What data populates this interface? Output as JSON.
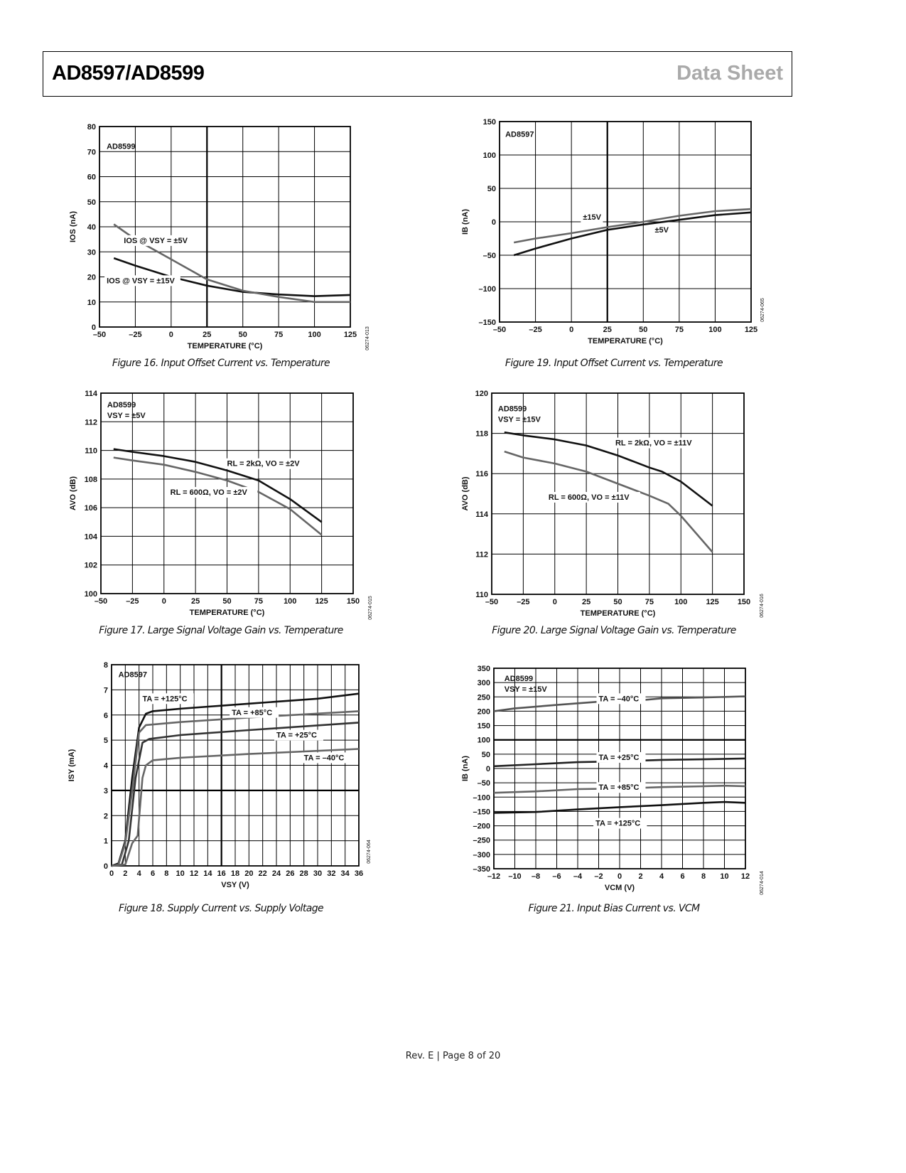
{
  "header": {
    "title": "AD8597/AD8599",
    "section": "Data Sheet"
  },
  "footer": {
    "text": "Rev. E | Page 8 of 20"
  },
  "colors": {
    "black_series": "#111111",
    "gray_series": "#666666",
    "section_label": "#aaaaaa"
  },
  "chart_data": [
    {
      "id": "fig16",
      "type": "line",
      "caption": "Figure 16. Input Offset Current vs. Temperature",
      "inset": [
        "AD8599"
      ],
      "xlabel": "TEMPERATURE (°C)",
      "ylabel": "IOS (nA)",
      "xlim": [
        -50,
        125
      ],
      "ylim": [
        0,
        80
      ],
      "xticks": [
        -50,
        -25,
        0,
        25,
        50,
        75,
        100,
        125
      ],
      "xtick_labels": [
        "–50",
        "–25",
        "0",
        "25",
        "50",
        "75",
        "100",
        "125"
      ],
      "yticks": [
        0,
        10,
        20,
        30,
        40,
        50,
        60,
        70,
        80
      ],
      "ytick_labels": [
        "0",
        "10",
        "20",
        "30",
        "40",
        "50",
        "60",
        "70",
        "80"
      ],
      "grid": true,
      "code": "06274-013",
      "series": [
        {
          "name": "IOS @ VSY = ±15V",
          "color": "#111111",
          "x": [
            -40,
            -25,
            0,
            25,
            50,
            75,
            100,
            125
          ],
          "y": [
            27.5,
            24.5,
            20,
            16.5,
            14,
            13,
            12.3,
            12.8
          ]
        },
        {
          "name": "IOS @ VSY = ±5V",
          "color": "#666666",
          "x": [
            -40,
            -25,
            0,
            25,
            50,
            75,
            100,
            125
          ],
          "y": [
            41,
            35,
            27,
            19,
            14.5,
            12,
            10,
            10
          ]
        }
      ]
    },
    {
      "id": "fig19",
      "type": "line",
      "caption": "Figure 19. Input Offset Current vs. Temperature",
      "inset": [
        "AD8597"
      ],
      "xlabel": "TEMPERATURE (°C)",
      "ylabel": "IB (nA)",
      "xlim": [
        -50,
        125
      ],
      "ylim": [
        -150,
        150
      ],
      "xticks": [
        -50,
        -25,
        0,
        25,
        50,
        75,
        100,
        125
      ],
      "xtick_labels": [
        "–50",
        "–25",
        "0",
        "25",
        "50",
        "75",
        "100",
        "125"
      ],
      "yticks": [
        -150,
        -100,
        -50,
        0,
        50,
        100,
        150
      ],
      "ytick_labels": [
        "–150",
        "–100",
        "–50",
        "0",
        "50",
        "100",
        "150"
      ],
      "grid": true,
      "code": "06274-065",
      "series": [
        {
          "name": "±15V",
          "color": "#111111",
          "x": [
            -40,
            -25,
            0,
            25,
            50,
            75,
            100,
            125
          ],
          "y": [
            -50,
            -40,
            -25,
            -12,
            -4,
            3,
            10,
            14
          ]
        },
        {
          "name": "±5V",
          "color": "#666666",
          "x": [
            -40,
            -25,
            0,
            25,
            50,
            75,
            100,
            125
          ],
          "y": [
            -31,
            -25,
            -17,
            -8,
            0,
            9,
            16,
            19
          ]
        }
      ]
    },
    {
      "id": "fig17",
      "type": "line",
      "caption": "Figure 17. Large Signal Voltage Gain vs. Temperature",
      "inset": [
        "AD8599",
        "VSY = ±5V"
      ],
      "xlabel": "TEMPERATURE (°C)",
      "ylabel": "AVO (dB)",
      "xlim": [
        -50,
        150
      ],
      "ylim": [
        100,
        114
      ],
      "xticks": [
        -50,
        -25,
        0,
        25,
        50,
        75,
        100,
        125,
        150
      ],
      "xtick_labels": [
        "–50",
        "–25",
        "0",
        "25",
        "50",
        "75",
        "100",
        "125",
        "150"
      ],
      "yticks": [
        100,
        102,
        104,
        106,
        108,
        110,
        112,
        114
      ],
      "ytick_labels": [
        "100",
        "102",
        "104",
        "106",
        "108",
        "110",
        "112",
        "114"
      ],
      "grid": true,
      "code": "06274-015",
      "series": [
        {
          "name": "RL = 2kΩ, VO = ±2V",
          "color": "#111111",
          "x": [
            -40,
            -25,
            0,
            25,
            50,
            75,
            100,
            125
          ],
          "y": [
            110.1,
            109.9,
            109.6,
            109.2,
            108.6,
            107.9,
            106.6,
            105.0
          ]
        },
        {
          "name": "RL = 600Ω, VO = ±2V",
          "color": "#666666",
          "x": [
            -40,
            -25,
            0,
            25,
            50,
            75,
            100,
            125
          ],
          "y": [
            109.5,
            109.3,
            109.0,
            108.5,
            107.9,
            107.1,
            105.9,
            104.1
          ]
        }
      ]
    },
    {
      "id": "fig20",
      "type": "line",
      "caption": "Figure 20. Large Signal Voltage Gain vs. Temperature",
      "inset": [
        "AD8599",
        "VSY = ±15V"
      ],
      "xlabel": "TEMPERATURE (°C)",
      "ylabel": "AVO (dB)",
      "xlim": [
        -50,
        150
      ],
      "ylim": [
        110,
        120
      ],
      "xticks": [
        -50,
        -25,
        0,
        25,
        50,
        75,
        100,
        125,
        150
      ],
      "xtick_labels": [
        "–50",
        "–25",
        "0",
        "25",
        "50",
        "75",
        "100",
        "125",
        "150"
      ],
      "yticks": [
        110,
        112,
        114,
        116,
        118,
        120
      ],
      "ytick_labels": [
        "110",
        "112",
        "114",
        "116",
        "118",
        "120"
      ],
      "grid": true,
      "code": "06274-016",
      "series": [
        {
          "name": "RL = 2kΩ, VO = ±11V",
          "color": "#111111",
          "x": [
            -40,
            -25,
            0,
            25,
            50,
            75,
            85,
            100,
            125
          ],
          "y": [
            118.05,
            117.9,
            117.7,
            117.4,
            116.9,
            116.3,
            116.1,
            115.6,
            114.4
          ]
        },
        {
          "name": "RL = 600Ω, VO = ±11V",
          "color": "#666666",
          "x": [
            -40,
            -25,
            0,
            25,
            50,
            75,
            90,
            100,
            125
          ],
          "y": [
            117.1,
            116.8,
            116.5,
            116.1,
            115.5,
            114.9,
            114.5,
            113.9,
            112.1
          ]
        }
      ]
    },
    {
      "id": "fig18",
      "type": "line",
      "caption": "Figure 18. Supply Current vs. Supply Voltage",
      "inset": [
        "AD8597"
      ],
      "xlabel": "VSY (V)",
      "ylabel": "ISY (mA)",
      "xlim": [
        0,
        36
      ],
      "ylim": [
        0,
        8
      ],
      "xticks": [
        0,
        2,
        4,
        6,
        8,
        10,
        12,
        14,
        16,
        18,
        20,
        22,
        24,
        26,
        28,
        30,
        32,
        34,
        36
      ],
      "xtick_labels": [
        "0",
        "2",
        "4",
        "6",
        "8",
        "10",
        "12",
        "14",
        "16",
        "18",
        "20",
        "22",
        "24",
        "26",
        "28",
        "30",
        "32",
        "34",
        "36"
      ],
      "yticks": [
        0,
        1,
        2,
        3,
        4,
        5,
        6,
        7,
        8
      ],
      "ytick_labels": [
        "0",
        "1",
        "2",
        "3",
        "4",
        "5",
        "6",
        "7",
        "8"
      ],
      "grid": true,
      "code": "06274-064",
      "series": [
        {
          "name": "TA = +125°C",
          "color": "#111111",
          "x": [
            0,
            1,
            2,
            3,
            4,
            5,
            6,
            10,
            20,
            30,
            36
          ],
          "y": [
            0,
            0.1,
            1,
            3.5,
            5.5,
            6.05,
            6.15,
            6.25,
            6.45,
            6.65,
            6.85
          ]
        },
        {
          "name": "TA = +85°C",
          "color": "#666666",
          "x": [
            0,
            1,
            2,
            3,
            4,
            5,
            10,
            20,
            36
          ],
          "y": [
            0,
            0.05,
            0.9,
            3,
            5.3,
            5.6,
            5.72,
            5.9,
            6.15
          ]
        },
        {
          "name": "TA = +25°C",
          "color": "#333333",
          "x": [
            0,
            1.5,
            2.5,
            3.5,
            4.5,
            5.5,
            10,
            20,
            36
          ],
          "y": [
            0,
            0.05,
            1,
            3.5,
            4.9,
            5.05,
            5.2,
            5.4,
            5.7
          ]
        },
        {
          "name": "TA = –40°C",
          "color": "#666666",
          "x": [
            0,
            2,
            3,
            3.8,
            4.5,
            5,
            6,
            10,
            20,
            36
          ],
          "y": [
            0,
            0.05,
            0.9,
            1.2,
            3.5,
            4,
            4.2,
            4.3,
            4.45,
            4.65
          ]
        }
      ]
    },
    {
      "id": "fig21",
      "type": "line",
      "caption": "Figure 21. Input Bias Current vs. VCM",
      "inset": [
        "AD8599",
        "VSY = ±15V"
      ],
      "xlabel": "VCM (V)",
      "ylabel": "IB (nA)",
      "xlim": [
        -12,
        12
      ],
      "ylim": [
        -350,
        350
      ],
      "xticks": [
        -12,
        -10,
        -8,
        -6,
        -4,
        -2,
        0,
        2,
        4,
        6,
        8,
        10,
        12
      ],
      "xtick_labels": [
        "–12",
        "–10",
        "–8",
        "–6",
        "–4",
        "–2",
        "0",
        "2",
        "4",
        "6",
        "8",
        "10",
        "12"
      ],
      "yticks": [
        -350,
        -300,
        -250,
        -200,
        -150,
        -100,
        -50,
        0,
        50,
        100,
        150,
        200,
        250,
        300,
        350
      ],
      "ytick_labels": [
        "–350",
        "–300",
        "–250",
        "–200",
        "–150",
        "–100",
        "–50",
        "0",
        "50",
        "100",
        "150",
        "200",
        "250",
        "300",
        "350"
      ],
      "grid": true,
      "code": "06274-014",
      "series": [
        {
          "name": "TA = –40°C",
          "color": "#555555",
          "x": [
            -12,
            -10,
            -6,
            -2,
            2,
            4,
            8,
            12
          ],
          "y": [
            200,
            210,
            222,
            233,
            238,
            245,
            248,
            252
          ]
        },
        {
          "name": "TA = +25°C",
          "color": "#222222",
          "x": [
            -12,
            -8,
            -4,
            0,
            4,
            8,
            12
          ],
          "y": [
            8,
            15,
            22,
            25,
            30,
            32,
            35
          ]
        },
        {
          "name": "TA = +85°C",
          "color": "#666666",
          "x": [
            -12,
            -8,
            -4,
            0,
            4,
            8,
            10,
            12
          ],
          "y": [
            -85,
            -80,
            -72,
            -70,
            -65,
            -62,
            -60,
            -62
          ]
        },
        {
          "name": "TA = +125°C",
          "color": "#111111",
          "x": [
            -12,
            -8,
            -4,
            0,
            4,
            8,
            10,
            12
          ],
          "y": [
            -155,
            -152,
            -143,
            -135,
            -128,
            -120,
            -117,
            -120
          ]
        }
      ]
    }
  ]
}
